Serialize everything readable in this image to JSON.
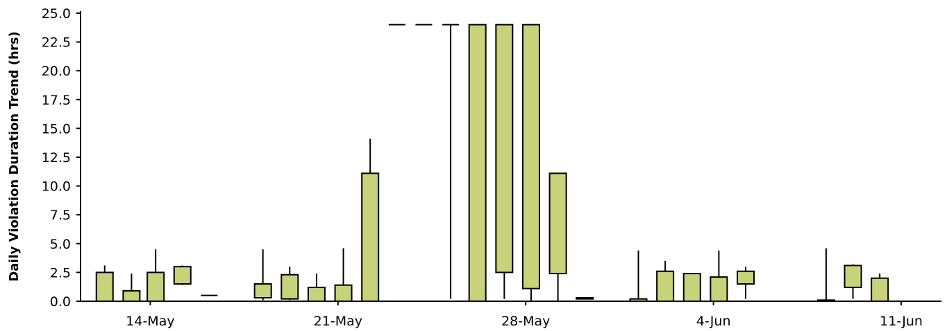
{
  "chart_data": {
    "type": "candlestick",
    "title": "",
    "xlabel": "",
    "ylabel": "Daily Violation Duration Trend (hrs)",
    "ylim": [
      0,
      25
    ],
    "yticks": [
      "0.0",
      "2.5",
      "5.0",
      "7.5",
      "10.0",
      "12.5",
      "15.0",
      "17.5",
      "20.0",
      "22.5",
      "25.0"
    ],
    "ytick_values": [
      0,
      2.5,
      5,
      7.5,
      10,
      12.5,
      15,
      17.5,
      20,
      22.5,
      25
    ],
    "xticks": [
      "14-May",
      "21-May",
      "28-May",
      "4-Jun",
      "11-Jun"
    ],
    "xtick_days": [
      14,
      21,
      28,
      35,
      42
    ],
    "xlim_days": [
      11.4,
      43.5
    ],
    "grid": false,
    "body_color": "#c8d27a",
    "edge_color": "#000000",
    "series": [
      {
        "day": 12.3,
        "low": 0,
        "q1": 0,
        "q3": 2.5,
        "high": 3.1
      },
      {
        "day": 13.3,
        "low": 0,
        "q1": 0,
        "q3": 0.9,
        "high": 2.4
      },
      {
        "day": 14.2,
        "low": 0,
        "q1": 0,
        "q3": 2.5,
        "high": 4.5
      },
      {
        "day": 15.2,
        "low": 1.4,
        "q1": 1.5,
        "q3": 3.0,
        "high": 3.1
      },
      {
        "day": 16.2,
        "low": 0.5,
        "q1": 0.5,
        "q3": 0.5,
        "high": 0.5
      },
      {
        "day": 17.2,
        "low": 0,
        "q1": 0,
        "q3": 0,
        "high": 0
      },
      {
        "day": 18.2,
        "low": 0.1,
        "q1": 0.3,
        "q3": 1.5,
        "high": 4.5
      },
      {
        "day": 19.2,
        "low": 0.1,
        "q1": 0.2,
        "q3": 2.3,
        "high": 3.0
      },
      {
        "day": 20.2,
        "low": 0,
        "q1": 0,
        "q3": 1.2,
        "high": 2.4
      },
      {
        "day": 21.2,
        "low": 0,
        "q1": 0,
        "q3": 1.4,
        "high": 4.6
      },
      {
        "day": 22.2,
        "low": 0,
        "q1": 0,
        "q3": 11.1,
        "high": 14.1
      },
      {
        "day": 23.2,
        "low": 24,
        "q1": 24,
        "q3": 24,
        "high": 24
      },
      {
        "day": 24.2,
        "low": 24,
        "q1": 24,
        "q3": 24,
        "high": 24
      },
      {
        "day": 25.2,
        "low": 0.2,
        "q1": 24,
        "q3": 24,
        "high": 24
      },
      {
        "day": 26.2,
        "low": 0,
        "q1": 0,
        "q3": 24,
        "high": 24
      },
      {
        "day": 27.2,
        "low": 0.2,
        "q1": 2.5,
        "q3": 24,
        "high": 24
      },
      {
        "day": 28.2,
        "low": 0,
        "q1": 1.1,
        "q3": 24,
        "high": 24
      },
      {
        "day": 29.2,
        "low": 0,
        "q1": 2.4,
        "q3": 11.1,
        "high": 11.1
      },
      {
        "day": 30.2,
        "low": 0.2,
        "q1": 0.2,
        "q3": 0.3,
        "high": 0.3
      },
      {
        "day": 31.2,
        "low": 0,
        "q1": 0,
        "q3": 0,
        "high": 0
      },
      {
        "day": 32.2,
        "low": 0,
        "q1": 0,
        "q3": 0.2,
        "high": 4.4
      },
      {
        "day": 33.2,
        "low": 0,
        "q1": 0,
        "q3": 2.6,
        "high": 3.5
      },
      {
        "day": 34.2,
        "low": 0,
        "q1": 0,
        "q3": 2.4,
        "high": 2.4
      },
      {
        "day": 35.2,
        "low": 0,
        "q1": 0,
        "q3": 2.1,
        "high": 4.4
      },
      {
        "day": 36.2,
        "low": 0.2,
        "q1": 1.5,
        "q3": 2.6,
        "high": 3.0
      },
      {
        "day": 37.2,
        "low": 0,
        "q1": 0,
        "q3": 0,
        "high": 0
      },
      {
        "day": 38.2,
        "low": 0,
        "q1": 0,
        "q3": 0,
        "high": 0
      },
      {
        "day": 39.2,
        "low": 0,
        "q1": 0,
        "q3": 0.1,
        "high": 4.6
      },
      {
        "day": 40.2,
        "low": 0.2,
        "q1": 1.2,
        "q3": 3.1,
        "high": 3.2
      },
      {
        "day": 41.2,
        "low": 0,
        "q1": 0,
        "q3": 2.0,
        "high": 2.4
      },
      {
        "day": 42.2,
        "low": 0,
        "q1": 0,
        "q3": 0,
        "high": 0
      }
    ]
  }
}
